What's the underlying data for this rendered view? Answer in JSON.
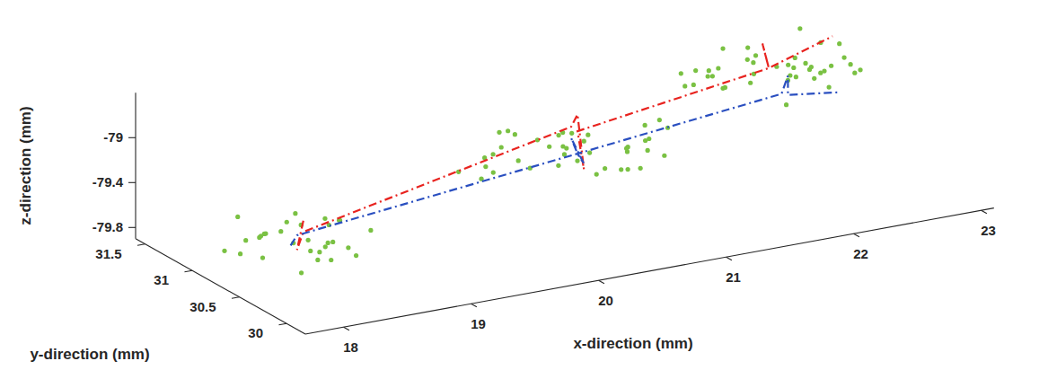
{
  "chart_data": {
    "type": "scatter3d",
    "x_label": "x-direction (mm)",
    "y_label": "y-direction (mm)",
    "z_label": "z-direction (mm)",
    "xlim": [
      17.7,
      23.1
    ],
    "ylim": [
      29.8,
      31.6
    ],
    "zlim": [
      -79.9,
      -78.6
    ],
    "xticks": [
      18,
      19,
      20,
      21,
      22,
      23
    ],
    "yticks": [
      30,
      30.5,
      31,
      31.5
    ],
    "zticks": [
      -79.8,
      -79.4,
      -79
    ],
    "grid": false,
    "series": [
      {
        "type": "scatter",
        "color": "#7ac143",
        "marker": "circle",
        "x": [
          17.92,
          18.45,
          18.12,
          18.61,
          18.28,
          17.85,
          18.38,
          18.71,
          18.05,
          18.52,
          18.19,
          17.98,
          18.33,
          18.66,
          18.24,
          18.08,
          18.47,
          18.79,
          18.15,
          18.36,
          17.9,
          18.57,
          18.27,
          18.42,
          18.02,
          18.69,
          18.21,
          18.5,
          18.11,
          18.31,
          19.78,
          20.12,
          20.65,
          21.08,
          19.95,
          20.41,
          20.88,
          20.27,
          19.86,
          20.56,
          21.15,
          20.03,
          20.72,
          20.34,
          19.7,
          20.95,
          20.48,
          20.19,
          21.02,
          20.61,
          19.91,
          20.38,
          20.81,
          20.08,
          20.53,
          21.2,
          19.82,
          20.29,
          20.76,
          20.44,
          20.15,
          20.98,
          19.99,
          20.68,
          20.23,
          20.86,
          20.5,
          19.88,
          21.1,
          20.36,
          21.35,
          21.72,
          22.18,
          22.51,
          21.58,
          21.96,
          22.34,
          21.47,
          22.08,
          22.63,
          21.81,
          22.25,
          21.4,
          22.45,
          21.67,
          22.02,
          22.57,
          21.89,
          22.29,
          21.53,
          22.12,
          22.7,
          21.76,
          22.4,
          21.62,
          21.99,
          22.48,
          21.44,
          22.21,
          21.84,
          22.6,
          21.7,
          22.05,
          22.37,
          21.5,
          21.93,
          22.54,
          21.79,
          22.15,
          22.31
        ],
        "y": [
          30.55,
          30.92,
          30.41,
          30.78,
          30.63,
          30.86,
          30.48,
          30.71,
          30.99,
          30.37,
          30.66,
          30.81,
          30.52,
          30.74,
          30.95,
          30.44,
          30.69,
          30.58,
          30.88,
          30.4,
          30.76,
          30.61,
          30.83,
          30.5,
          30.72,
          30.93,
          30.46,
          30.67,
          30.79,
          30.57,
          30.62,
          30.85,
          30.44,
          30.77,
          30.93,
          30.51,
          30.68,
          30.39,
          30.82,
          30.58,
          30.71,
          30.96,
          30.47,
          30.64,
          30.88,
          30.55,
          30.79,
          30.42,
          30.66,
          30.91,
          30.53,
          30.74,
          30.6,
          30.87,
          30.45,
          30.69,
          30.8,
          30.57,
          30.94,
          30.49,
          30.73,
          30.63,
          30.84,
          30.41,
          30.76,
          30.52,
          30.9,
          30.67,
          30.59,
          30.81,
          30.71,
          30.48,
          30.86,
          30.59,
          30.93,
          30.44,
          30.77,
          30.63,
          30.52,
          30.89,
          30.67,
          30.4,
          30.82,
          30.56,
          30.74,
          30.95,
          30.5,
          30.69,
          30.61,
          30.84,
          30.43,
          30.78,
          30.57,
          30.91,
          30.65,
          30.46,
          30.8,
          30.54,
          30.72,
          30.97,
          30.6,
          30.83,
          30.49,
          30.75,
          30.66,
          30.42,
          30.88,
          30.58,
          30.7,
          30.53
        ],
        "z": [
          -79.62,
          -79.51,
          -79.73,
          -79.58,
          -79.44,
          -79.69,
          -79.55,
          -79.77,
          -79.49,
          -79.64,
          -79.41,
          -79.6,
          -79.71,
          -79.53,
          -79.66,
          -79.47,
          -79.75,
          -79.57,
          -79.63,
          -79.5,
          -79.68,
          -79.45,
          -79.59,
          -79.72,
          -79.54,
          -79.61,
          -79.48,
          -79.7,
          -79.56,
          -79.65,
          -79.28,
          -79.12,
          -79.35,
          -79.2,
          -79.41,
          -79.08,
          -79.31,
          -79.17,
          -79.26,
          -79.44,
          -79.14,
          -79.33,
          -79.22,
          -79.05,
          -79.38,
          -79.19,
          -79.29,
          -79.11,
          -79.36,
          -79.24,
          -79.16,
          -79.4,
          -79.27,
          -79.09,
          -79.32,
          -79.21,
          -79.43,
          -79.13,
          -79.3,
          -79.18,
          -79.37,
          -79.25,
          -79.07,
          -79.34,
          -79.15,
          -79.42,
          -79.23,
          -79.1,
          -79.39,
          -79.26,
          -78.88,
          -78.74,
          -78.95,
          -78.81,
          -79.02,
          -78.69,
          -78.91,
          -78.78,
          -78.86,
          -79.05,
          -78.72,
          -78.93,
          -78.83,
          -78.66,
          -78.98,
          -78.79,
          -78.89,
          -78.71,
          -78.96,
          -78.84,
          -78.76,
          -79.0,
          -78.87,
          -78.68,
          -78.92,
          -78.8,
          -79.04,
          -78.73,
          -78.9,
          -78.77,
          -78.97,
          -78.85,
          -78.67,
          -78.94,
          -78.75,
          -79.03,
          -78.82,
          -78.7,
          -78.99,
          -78.86
        ]
      },
      {
        "type": "line",
        "color": "#e8231f",
        "line_style": "dashdot",
        "x": [
          18.35,
          18.3,
          18.35,
          20.45,
          20.5,
          20.55,
          20.5,
          22.0,
          21.95,
          22.0,
          22.5
        ],
        "y": [
          30.7,
          30.7,
          30.7,
          30.7,
          30.7,
          30.7,
          30.7,
          30.7,
          30.7,
          30.7,
          30.7
        ],
        "z": [
          -79.45,
          -79.7,
          -79.55,
          -79.05,
          -78.95,
          -79.45,
          -79.1,
          -78.85,
          -78.62,
          -78.85,
          -78.67
        ]
      },
      {
        "type": "line",
        "color": "#2a4fc0",
        "line_style": "dashdot",
        "x": [
          18.25,
          18.3,
          20.5,
          20.45,
          20.55,
          20.5,
          22.1,
          22.15,
          22.15,
          22.55
        ],
        "y": [
          30.7,
          30.7,
          30.7,
          30.7,
          30.7,
          30.7,
          30.7,
          30.7,
          30.7,
          30.7
        ],
        "z": [
          -79.65,
          -79.57,
          -79.3,
          -79.15,
          -79.4,
          -79.3,
          -79.1,
          -78.95,
          -79.12,
          -79.18
        ]
      }
    ]
  }
}
